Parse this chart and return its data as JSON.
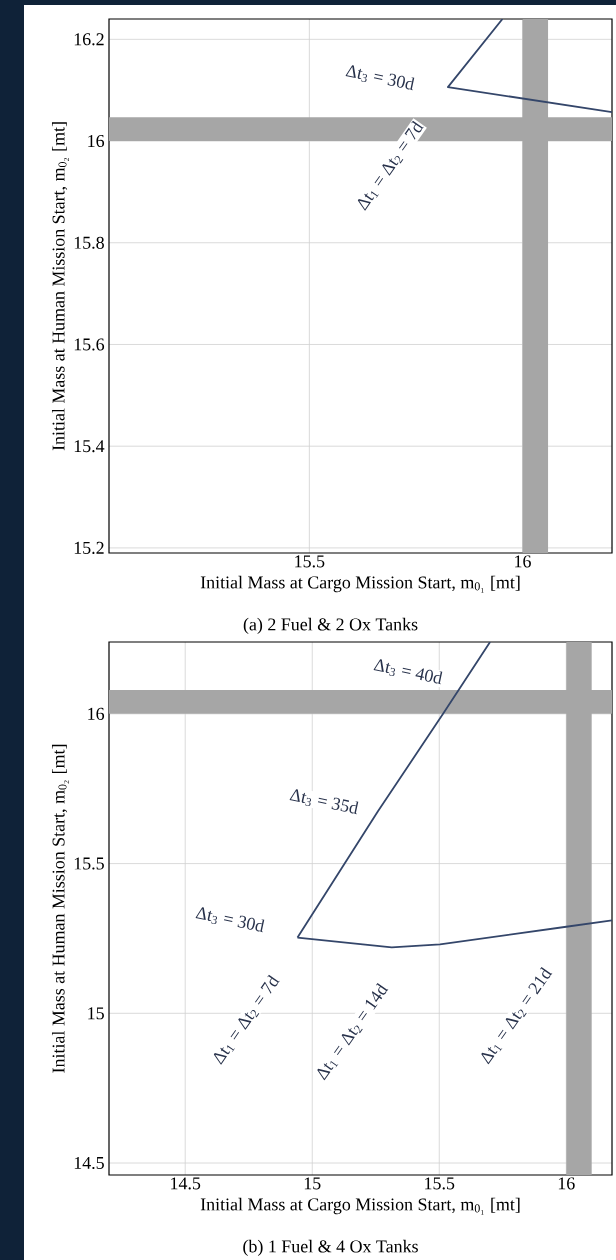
{
  "chart_data": [
    {
      "type": "line",
      "title": "(a) 2 Fuel & 2 Ox Tanks",
      "xlabel": "Initial Mass at Cargo Mission Start, m$_{0₁}$ [mt]",
      "ylabel": "Initial Mass at Human Mission Start, m$_{0₂}$ [mt]",
      "xlim": [
        15.03,
        16.21
      ],
      "ylim": [
        15.19,
        16.24
      ],
      "xticks": [
        15.5,
        16
      ],
      "yticks": [
        15.2,
        15.4,
        15.6,
        15.8,
        16,
        16.2
      ],
      "grid": true,
      "series": [
        {
          "color": "#34466a",
          "x": [
            15.953,
            15.825,
            16.21
          ],
          "values": [
            16.24,
            16.106,
            16.057
          ]
        }
      ],
      "bands": [
        {
          "axis": "x",
          "from": 16,
          "to": 16.06,
          "color": "#a6a6a6"
        },
        {
          "axis": "y",
          "from": 16,
          "to": 16.047,
          "color": "#a6a6a6"
        }
      ],
      "annotations": [
        "Δt$_{3}$ = 30d",
        "Δt$_{1}$ = Δt$_{2}$ = 7d"
      ]
    },
    {
      "type": "line",
      "title": "(b) 1 Fuel & 4 Ox Tanks",
      "xlabel": "Initial Mass at Cargo Mission Start, m$_{0₁}$ [mt]",
      "ylabel": "Initial Mass at Human Mission Start, m$_{0₂}$ [mt]",
      "xlim": [
        14.2,
        16.18
      ],
      "ylim": [
        14.46,
        16.24
      ],
      "xticks": [
        14.5,
        15,
        15.5,
        16
      ],
      "yticks": [
        14.5,
        15,
        15.5,
        16
      ],
      "grid": true,
      "series": [
        {
          "color": "#34466a",
          "x": [
            15.7,
            15.515,
            15.258,
            14.942
          ],
          "values": [
            16.24,
            16.0,
            15.674,
            15.253
          ]
        },
        {
          "color": "#34466a",
          "x": [
            14.942,
            15.313,
            15.503,
            16.0,
            16.18
          ],
          "values": [
            15.253,
            15.22,
            15.23,
            15.289,
            15.31
          ]
        }
      ],
      "bands": [
        {
          "axis": "x",
          "from": 16,
          "to": 16.1,
          "color": "#a6a6a6"
        },
        {
          "axis": "y",
          "from": 16,
          "to": 16.08,
          "color": "#a6a6a6"
        }
      ],
      "annotations": [
        "Δt$_{3}$ = 40d",
        "Δt$_{3}$ = 35d",
        "Δt$_{3}$ = 30d",
        "Δt$_{1}$ = Δt$_{2}$ = 7d",
        "Δt$_{1}$ = Δt$_{2}$ = 14d",
        "Δt$_{1}$ = Δt$_{2}$ = 21d"
      ]
    }
  ]
}
